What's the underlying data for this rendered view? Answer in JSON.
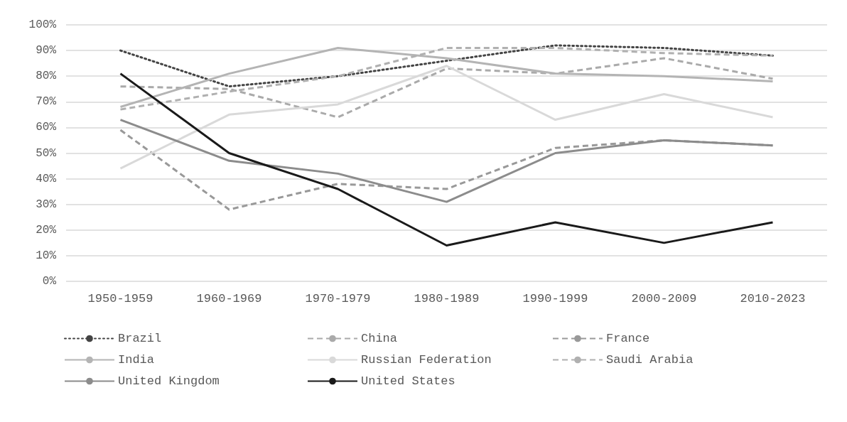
{
  "chart_data": {
    "type": "line",
    "categories": [
      "1950-1959",
      "1960-1969",
      "1970-1979",
      "1980-1989",
      "1990-1999",
      "2000-2009",
      "2010-2023"
    ],
    "series": [
      {
        "name": "Brazil",
        "color": "#444444",
        "line_style": "dotted",
        "values": [
          90,
          76,
          80,
          86,
          92,
          91,
          88
        ]
      },
      {
        "name": "China",
        "color": "#aaaaaa",
        "line_style": "dashed",
        "values": [
          76,
          75,
          64,
          83,
          81,
          87,
          79
        ]
      },
      {
        "name": "France",
        "color": "#999999",
        "line_style": "dashed",
        "values": [
          59,
          28,
          38,
          36,
          52,
          55,
          53
        ]
      },
      {
        "name": "India",
        "color": "#b4b4b4",
        "line_style": "solid",
        "values": [
          68,
          81,
          91,
          87,
          81,
          80,
          78
        ]
      },
      {
        "name": "Russian Federation",
        "color": "#d9d9d9",
        "line_style": "solid",
        "values": [
          44,
          65,
          69,
          84,
          63,
          73,
          64
        ]
      },
      {
        "name": "Saudi Arabia",
        "color": "#b0b0b0",
        "line_style": "dashed",
        "values": [
          67,
          74,
          80,
          91,
          91,
          89,
          88
        ]
      },
      {
        "name": "United Kingdom",
        "color": "#8c8c8c",
        "line_style": "solid",
        "values": [
          63,
          47,
          42,
          31,
          50,
          55,
          53
        ]
      },
      {
        "name": "United States",
        "color": "#1a1a1a",
        "line_style": "solid",
        "values": [
          81,
          50,
          36,
          14,
          23,
          15,
          23
        ]
      }
    ],
    "ylim": [
      0,
      100
    ],
    "yticks": [
      {
        "value": 0,
        "label": "0%"
      },
      {
        "value": 10,
        "label": "10%"
      },
      {
        "value": 20,
        "label": "20%"
      },
      {
        "value": 30,
        "label": "30%"
      },
      {
        "value": 40,
        "label": "40%"
      },
      {
        "value": 50,
        "label": "50%"
      },
      {
        "value": 60,
        "label": "60%"
      },
      {
        "value": 70,
        "label": "70%"
      },
      {
        "value": 80,
        "label": "80%"
      },
      {
        "value": 90,
        "label": "90%"
      },
      {
        "value": 100,
        "label": "100%"
      }
    ],
    "grid": "y",
    "legend": "bottom",
    "marker": "none"
  }
}
